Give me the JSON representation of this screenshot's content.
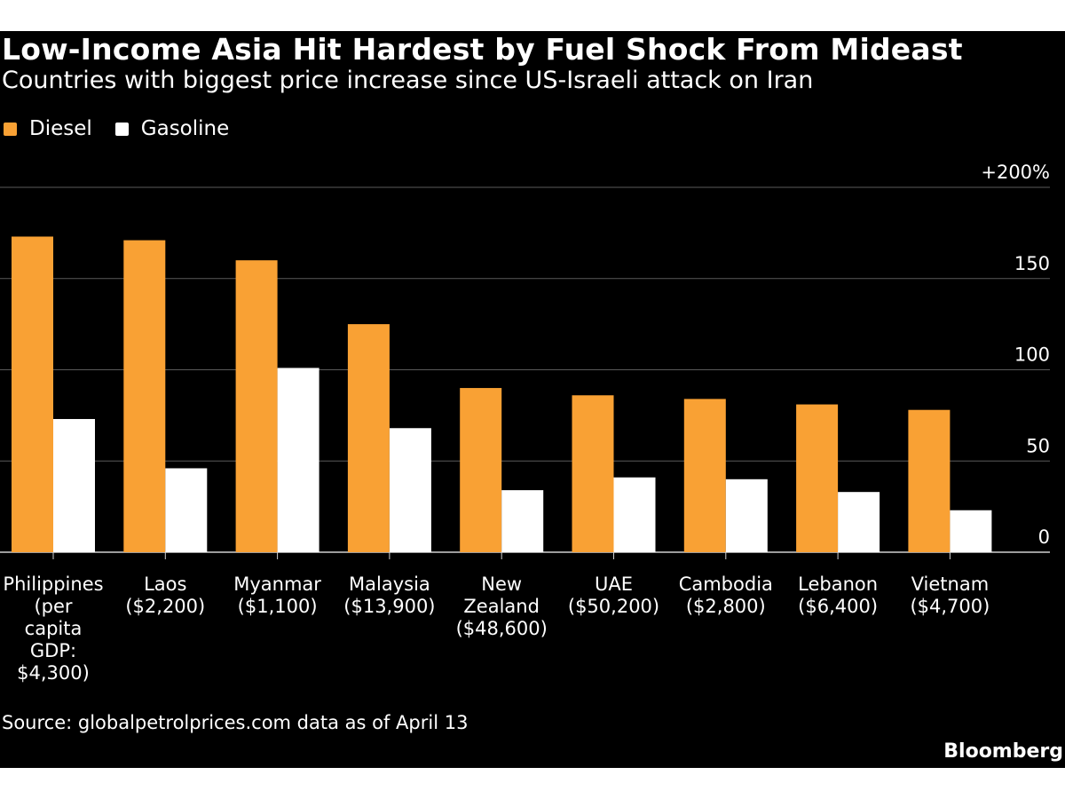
{
  "title": "Low-Income Asia Hit Hardest by Fuel Shock From Mideast",
  "subtitle": "Countries with biggest price increase since US-Israeli attack on Iran",
  "source": "Source: globalpetrolprices.com data as of April 13",
  "brand": "Bloomberg",
  "colors": {
    "diesel": "#f9a134",
    "gasoline": "#ffffff",
    "background": "#000000",
    "grid": "#5a5a5a"
  },
  "chart_data": {
    "type": "bar",
    "title": "Low-Income Asia Hit Hardest by Fuel Shock From Mideast",
    "ylabel": "",
    "xlabel": "",
    "ylim": [
      0,
      200
    ],
    "yticks": [
      0,
      50,
      100,
      150,
      200
    ],
    "ytick_labels": [
      "0",
      "50",
      "100",
      "150",
      "+200%"
    ],
    "categories": [
      "Philippines\n(per\ncapita\nGDP:\n$4,300)",
      "Laos\n($2,200)",
      "Myanmar\n($1,100)",
      "Malaysia\n($13,900)",
      "New\nZealand\n($48,600)",
      "UAE\n($50,200)",
      "Cambodia\n($2,800)",
      "Lebanon\n($6,400)",
      "Vietnam\n($4,700)"
    ],
    "series": [
      {
        "name": "Diesel",
        "values": [
          173,
          171,
          160,
          125,
          90,
          86,
          84,
          81,
          78
        ]
      },
      {
        "name": "Gasoline",
        "values": [
          73,
          46,
          101,
          68,
          34,
          41,
          40,
          33,
          23
        ]
      }
    ],
    "legend": "top-left"
  }
}
